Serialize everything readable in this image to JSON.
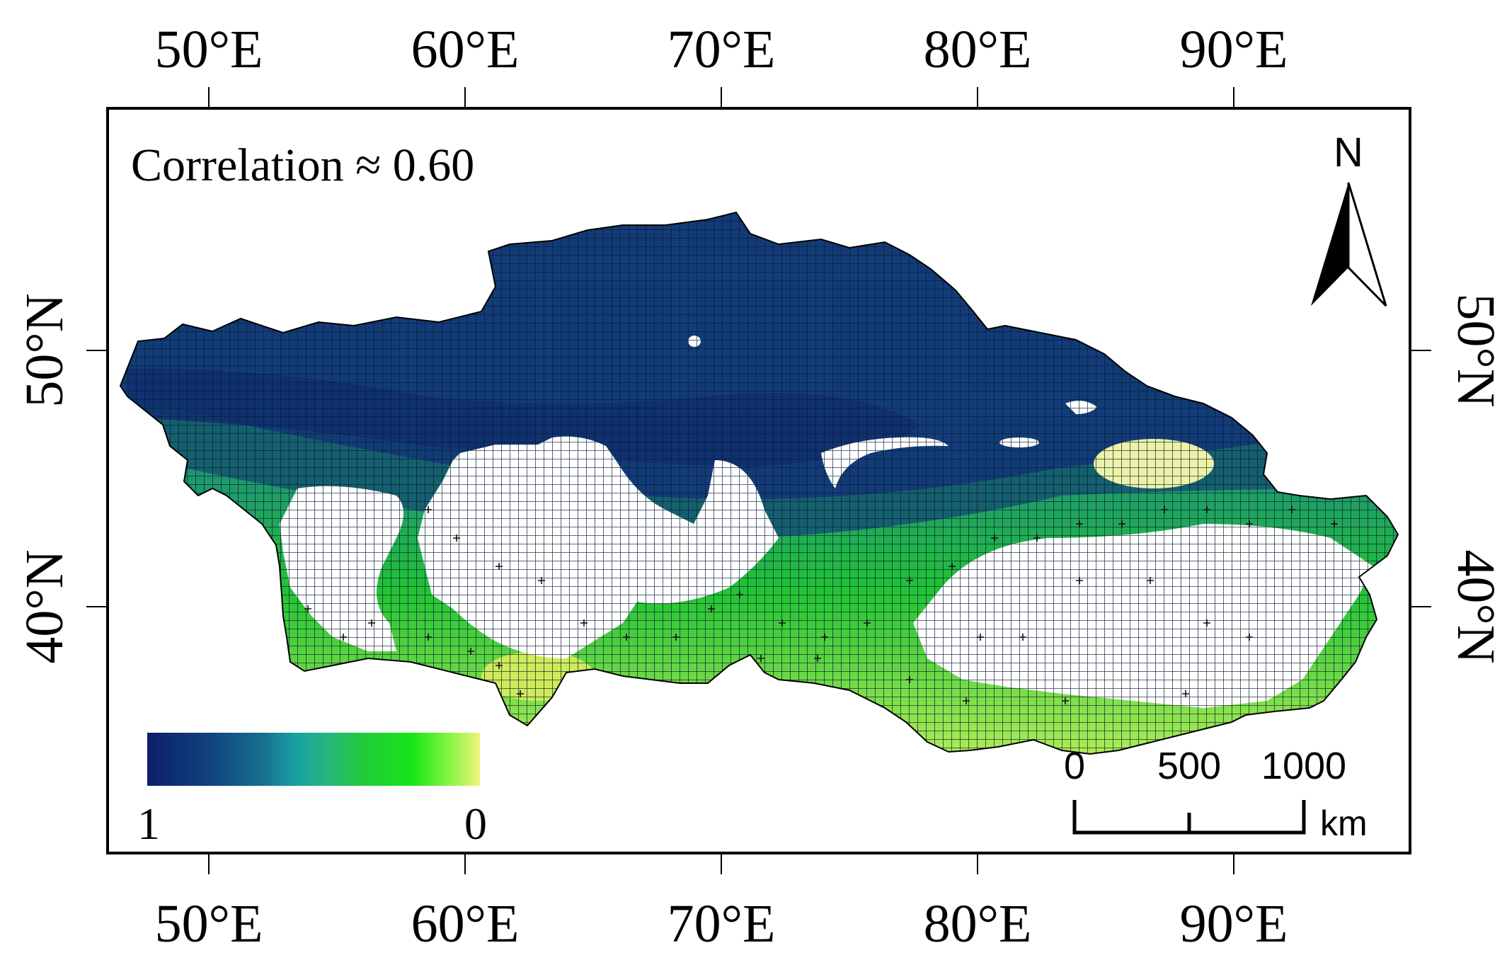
{
  "map": {
    "annotation": "Correlation ≈ 0.60",
    "lon_labels": [
      "50°E",
      "60°E",
      "70°E",
      "80°E",
      "90°E"
    ],
    "lat_labels": [
      "50°N",
      "40°N"
    ],
    "lon_ticks": [
      50,
      60,
      70,
      80,
      90
    ],
    "lat_ticks": [
      50,
      40
    ],
    "extent": {
      "lon_min": 46,
      "lon_max": 96.5,
      "lat_min": 34.6,
      "lat_max": 55.2
    },
    "north_arrow": {
      "label": "N"
    },
    "scale_bar": {
      "labels": [
        "0",
        "500",
        "1000"
      ],
      "unit": "km"
    },
    "colorbar": {
      "min_label": "1",
      "max_label": "0",
      "colors": [
        "#0d1f6b",
        "#10457f",
        "#17718c",
        "#18a2a4",
        "#27b77a",
        "#1fcb3a",
        "#19e617",
        "#7ef43f",
        "#eef57b"
      ]
    },
    "colors": {
      "high_correlation": "#123c78",
      "mid_correlation": "#1c8a7a",
      "low_correlation": "#22d620",
      "near_zero": "#e8f47a",
      "no_data": "#ffffff",
      "frame": "#000000"
    }
  }
}
